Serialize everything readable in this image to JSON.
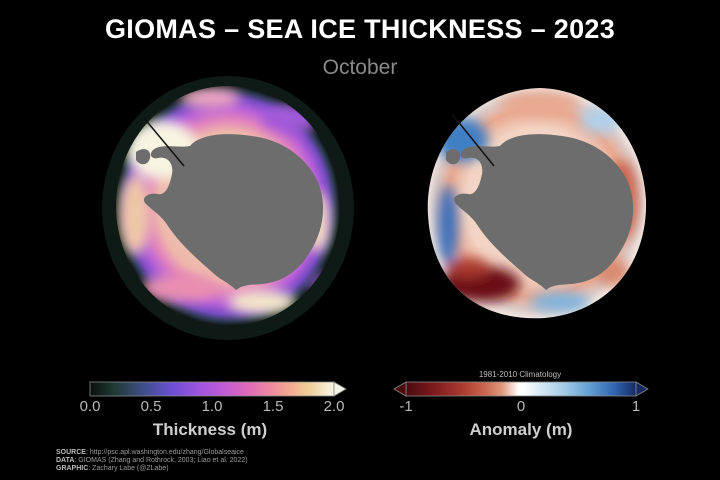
{
  "header": {
    "title": "GIOMAS – SEA ICE THICKNESS – 2023",
    "subtitle": "October"
  },
  "thickness_map": {
    "colorbar": {
      "ticks": [
        "0.0",
        "0.5",
        "1.0",
        "1.5",
        "2.0"
      ],
      "label": "Thickness (m)",
      "range": [
        0.0,
        2.0
      ],
      "colors": [
        "#0b0f0d",
        "#1f3b34",
        "#3f4f8a",
        "#6a4fd1",
        "#9b54e0",
        "#c25bd6",
        "#e06bb8",
        "#ee8aa0",
        "#f2aa8e",
        "#f0cf9a",
        "#eee6bf",
        "#f6f6e8"
      ]
    }
  },
  "anomaly_map": {
    "climatology_note": "1981-2010 Climatology",
    "colorbar": {
      "ticks": [
        "-1",
        "0",
        "1"
      ],
      "label": "Anomaly (m)",
      "range": [
        -1,
        1
      ],
      "colors": [
        "#4a0a10",
        "#7d1a1e",
        "#a8392f",
        "#c9654d",
        "#e09a80",
        "#f3cdbd",
        "#ffffff",
        "#cfe3f2",
        "#9cc7e6",
        "#5f9ed1",
        "#3468b4",
        "#1c3f8c",
        "#142a63"
      ]
    }
  },
  "credits": {
    "source_label": "SOURCE",
    "source_value": ": http://psc.apl.washington.edu/zhang/Globalseaice",
    "data_label": "DATA",
    "data_value": ": GIOMAS (Zhang and Rothrock, 2003; Liao et al. 2022)",
    "graphic_label": "GRAPHIC",
    "graphic_value": ": Zachary Labe (@ZLabe)"
  }
}
